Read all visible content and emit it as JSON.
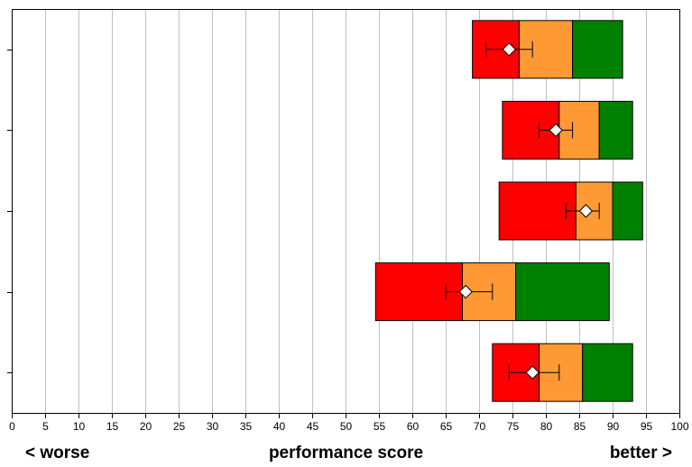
{
  "chart_data": {
    "type": "bar",
    "orientation": "horizontal",
    "chart_style": "stacked-range-bar-with-error-bars",
    "xlim": [
      0,
      100
    ],
    "x_ticks": [
      0,
      5,
      10,
      15,
      20,
      25,
      30,
      35,
      40,
      45,
      50,
      55,
      60,
      65,
      70,
      75,
      80,
      85,
      90,
      95,
      100
    ],
    "grid": "vertical",
    "xlabel": "performance score",
    "left_label": "< worse",
    "right_label": "better >",
    "segment_colors": {
      "low": "#ff0000",
      "mid": "#ff9933",
      "high": "#008000"
    },
    "marker_color": "#ffffff",
    "rows": [
      {
        "segments": [
          69,
          76,
          84,
          91.5
        ],
        "mean": 74.5,
        "ci": [
          71,
          78
        ]
      },
      {
        "segments": [
          73.5,
          82,
          88,
          93
        ],
        "mean": 81.5,
        "ci": [
          79,
          84
        ]
      },
      {
        "segments": [
          73,
          84.5,
          90,
          94.5
        ],
        "mean": 86,
        "ci": [
          83,
          88
        ]
      },
      {
        "segments": [
          54.5,
          67.5,
          75.5,
          89.5
        ],
        "mean": 68,
        "ci": [
          65,
          72
        ]
      },
      {
        "segments": [
          72,
          79,
          85.5,
          93
        ],
        "mean": 78,
        "ci": [
          74.5,
          82
        ]
      }
    ]
  }
}
